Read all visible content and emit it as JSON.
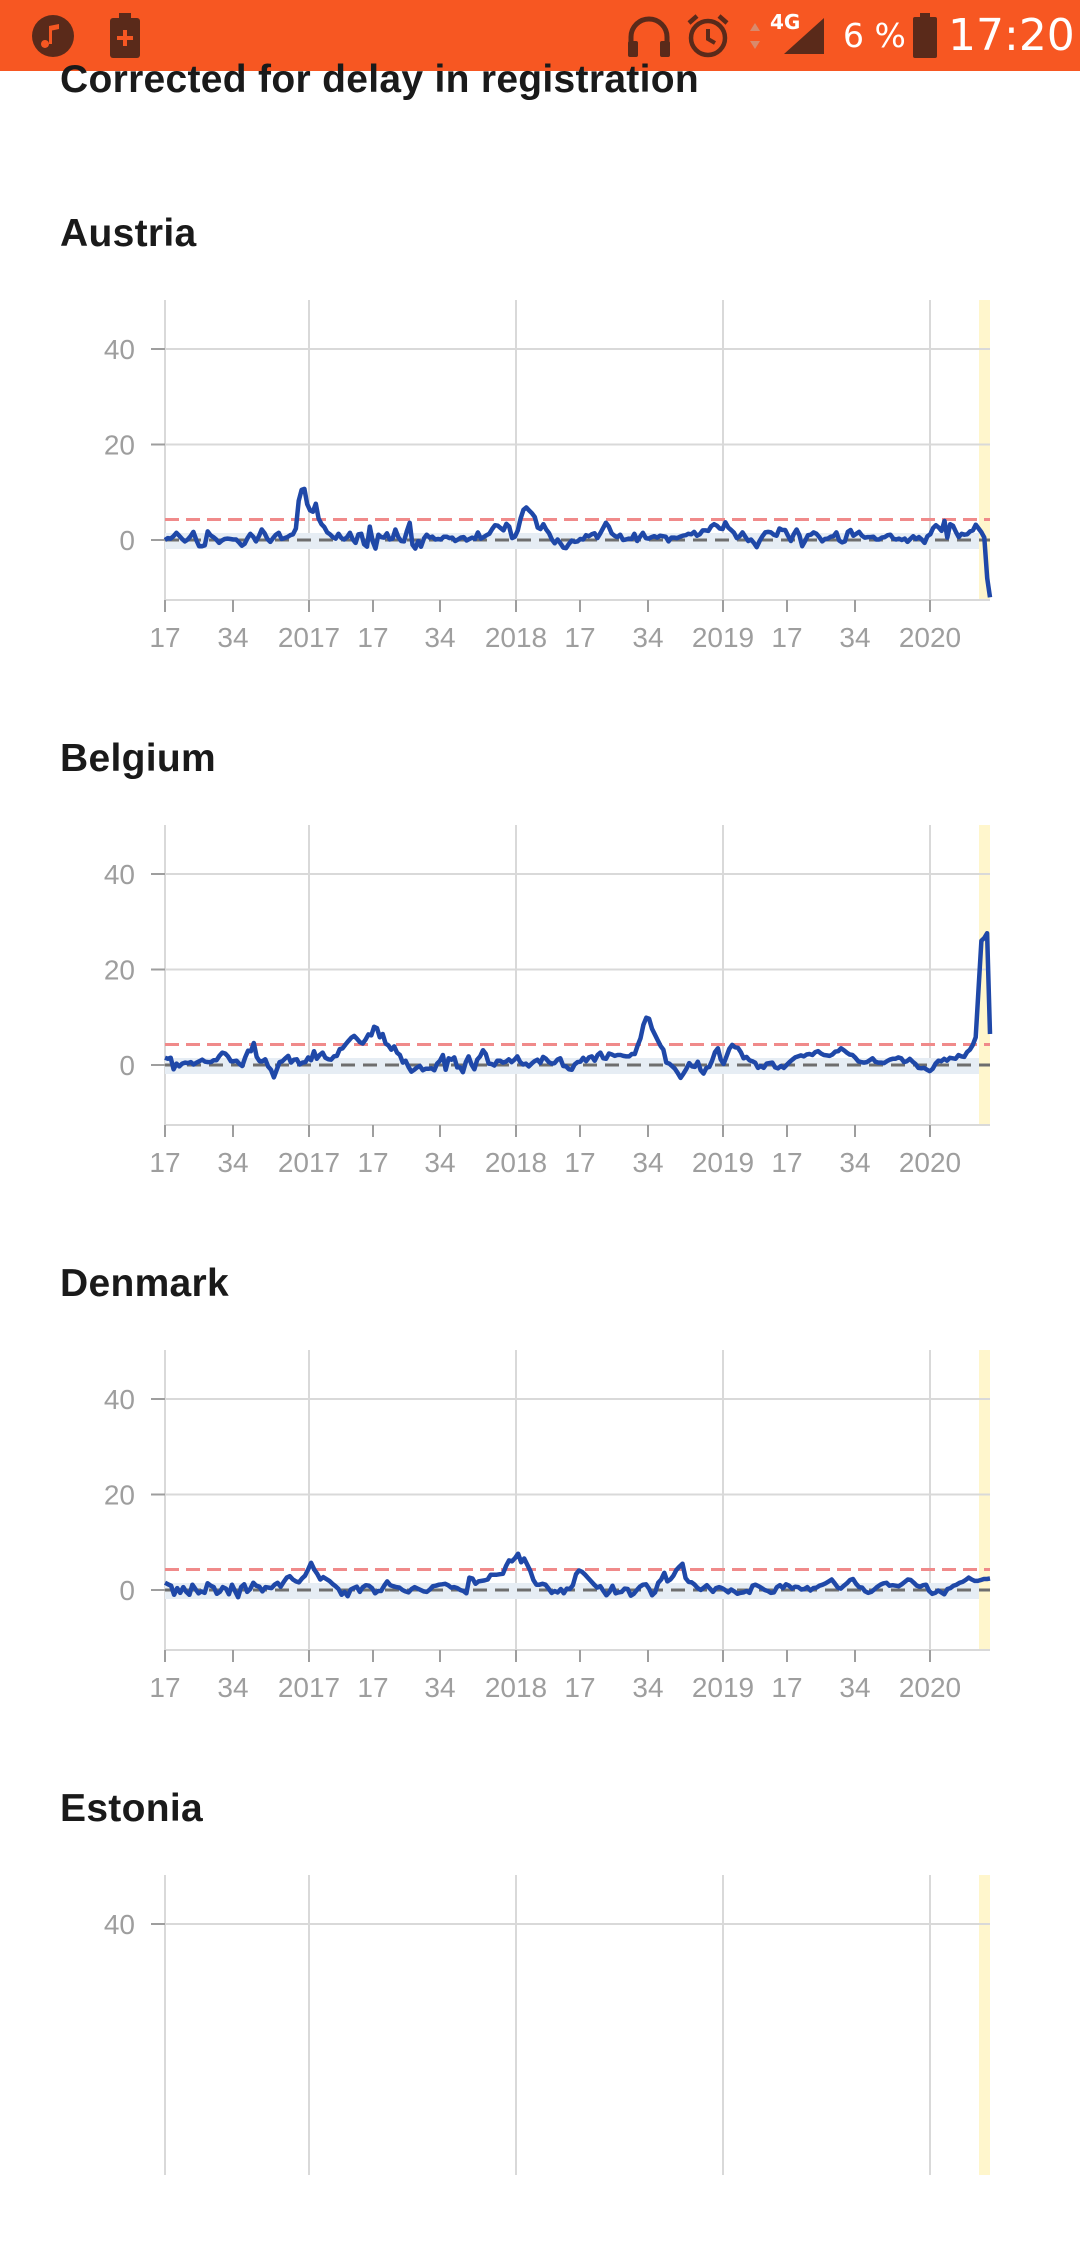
{
  "status_bar": {
    "time": "17:20",
    "battery_percent": "6 %",
    "network": "4G",
    "background_color": "#f75722",
    "left_icons": [
      "music-note-icon",
      "battery-saver-icon"
    ],
    "right_icons": [
      "headphones-icon",
      "alarm-clock-icon",
      "data-arrows-icon",
      "signal-icon",
      "battery-icon"
    ]
  },
  "page": {
    "subtitle": "Corrected for delay in registration"
  },
  "colors": {
    "series_line": "#1f48a8",
    "baseline_dash": "#6e6e6e",
    "threshold_dash": "#f08a8a",
    "baseline_band": "#e6edf4",
    "highlight_band": "#fff6cc",
    "grid": "#d9d9d9",
    "tick_text": "#9e9e9e"
  },
  "chart_data": [
    {
      "type": "line",
      "title": "Austria",
      "x_tick_labels": [
        "17",
        "34",
        "2017",
        "17",
        "34",
        "2018",
        "17",
        "34",
        "2019",
        "17",
        "34",
        "2020"
      ],
      "y_tick_labels": [
        "40",
        "20",
        "0"
      ],
      "ylim": [
        -12,
        50
      ],
      "baseline": 0,
      "threshold": 4.3,
      "highlighted_region": "last weeks of 2020",
      "series": [
        {
          "color": "#1f48a8",
          "values": [
            0,
            0.4,
            0.3,
            0.8,
            1.5,
            0.9,
            0.2,
            -0.3,
            0.1,
            0.8,
            1.7,
            0,
            -1.3,
            -1.3,
            -1.1,
            1.8,
            1,
            0.6,
            0.1,
            -0.6,
            -0.1,
            0.2,
            0.3,
            0.2,
            0.1,
            0.1,
            -0.5,
            -1.2,
            -0.8,
            0.4,
            1.3,
            0.7,
            -0.3,
            0.8,
            2.2,
            1.4,
            0.2,
            -0.4,
            0.4,
            1.1,
            1.5,
            0.2,
            0.4,
            0.6,
            1,
            1.2,
            2.4,
            8.2,
            10.5,
            10.7,
            7.5,
            6.2,
            5.9,
            7.6,
            4.5,
            3.3,
            2.7,
            1.6,
            1.2,
            0.6,
            0.3,
            1.3,
            0.4,
            0.1,
            0.6,
            1.5,
            0.1,
            -0.6,
            1.2,
            1.3,
            -0.9,
            -1.4,
            2.8,
            -0.3,
            -1.8,
            1.1,
            0.6,
            0.5,
            1.4,
            0.1,
            0.3,
            2.2,
            0.6,
            -0.2,
            -0.3,
            1.8,
            3.6,
            -1,
            -1.8,
            -0.2,
            -1.4,
            0.3,
            1.1,
            0.5,
            0.7,
            0.1,
            0.2,
            0.1,
            0.7,
            0.7,
            0.4,
            0.5,
            -0.2,
            0.1,
            0.5,
            0.6,
            -0.1,
            0.2,
            0.5,
            0.2,
            1.6,
            0.3,
            0.6,
            1,
            1.3,
            2.3,
            3.1,
            3,
            2.5,
            2,
            3.4,
            2.8,
            0.4,
            0.7,
            2,
            4.5,
            6.3,
            6.8,
            6.2,
            5.6,
            4.8,
            2.6,
            2.3,
            3.3,
            2.2,
            1.4,
            0.1,
            -0.7,
            0.1,
            -0.7,
            -1.6,
            -1.7,
            -0.8,
            -0.1,
            -0.4,
            -0.3,
            0.2,
            0.1,
            1,
            0.8,
            1.2,
            1.4,
            0.4,
            1.4,
            2.5,
            3.6,
            2.8,
            1.4,
            0.9,
            0.6,
            1.1,
            0,
            0.1,
            0.3,
            0.2,
            1.3,
            -0.2,
            0.7,
            1.5,
            0.4,
            0.3,
            0.6,
            0.8,
            0.5,
            0.9,
            0.8,
            0.7,
            -0.3,
            0.5,
            0.5,
            0.4,
            0.7,
            0.9,
            1,
            1.3,
            1.2,
            1.7,
            0.9,
            1.2,
            2,
            2,
            1.9,
            2.9,
            3.3,
            3,
            2.4,
            2.3,
            3.7,
            2.6,
            2.1,
            1.5,
            0.4,
            0.8,
            1.6,
            0.7,
            -0.2,
            0.1,
            -0.6,
            -1.5,
            -0.2,
            0.8,
            1.6,
            1.7,
            1.6,
            1.1,
            0.9,
            2.4,
            2.1,
            2.1,
            0.9,
            -0.2,
            1.2,
            2.2,
            1,
            -1.3,
            -0.2,
            1,
            1.1,
            1.6,
            1.3,
            0.6,
            -0.3,
            0.2,
            0.3,
            0.7,
            0.8,
            1.6,
            -0.1,
            -0.5,
            -0.3,
            1.7,
            2.1,
            0.9,
            1.3,
            1.7,
            0.9,
            0.5,
            0.6,
            0.6,
            0.7,
            0.1,
            0.1,
            0.5,
            0.6,
            1,
            1.1,
            0.3,
            0.1,
            0.3,
            0,
            0.3,
            -0.4,
            0.2,
            0.8,
            0.2,
            0.6,
            0.1,
            -0.6,
            0.8,
            1.2,
            2.5,
            3.1,
            2.6,
            1.9,
            4,
            0.5,
            3.3,
            3,
            1.7,
            0.6,
            1.3,
            1.1,
            1.2,
            1.8,
            2,
            3.2,
            2.4,
            1.6,
            0.5,
            -8,
            -12
          ]
        }
      ]
    },
    {
      "type": "line",
      "title": "Belgium",
      "x_tick_labels": [
        "17",
        "34",
        "2017",
        "17",
        "34",
        "2018",
        "17",
        "34",
        "2019",
        "17",
        "34",
        "2020"
      ],
      "y_tick_labels": [
        "40",
        "20",
        "0"
      ],
      "ylim": [
        -12,
        50
      ],
      "baseline": 0,
      "threshold": 4.3,
      "highlighted_region": "last weeks of 2020",
      "series": [
        {
          "color": "#1f48a8",
          "values": [
            1.5,
            1.3,
            1.5,
            -0.9,
            0.3,
            -0.3,
            0.3,
            0.5,
            0.4,
            0.6,
            0.1,
            0.5,
            0.8,
            1.1,
            0.7,
            0.6,
            0.6,
            1,
            1,
            1.9,
            2.6,
            2.4,
            1.8,
            0.8,
            0.8,
            0.9,
            0.2,
            -0.2,
            1.6,
            3,
            2.9,
            4.6,
            1.7,
            0.8,
            0.8,
            1.2,
            -0.3,
            -1,
            -2.6,
            -1,
            0.6,
            0.8,
            1.4,
            1.9,
            0.5,
            1.1,
            1.2,
            0.1,
            0.5,
            0.6,
            1.6,
            1,
            2.9,
            1.3,
            2.1,
            2.6,
            1.5,
            1.2,
            1.1,
            1.8,
            1.9,
            3.3,
            3.5,
            4.3,
            5,
            5.7,
            6.1,
            5.5,
            4.8,
            4.5,
            5.3,
            6.4,
            6.2,
            8,
            7.7,
            5.8,
            6.5,
            4.5,
            4.1,
            3.2,
            3.9,
            2.6,
            2.1,
            0.5,
            0.9,
            -0.4,
            -1.4,
            -1,
            -0.5,
            -0.2,
            -1.1,
            -0.8,
            -0.8,
            -0.7,
            -1.1,
            0.3,
            0.9,
            2.1,
            -1,
            1.4,
            1.1,
            1.6,
            -0.5,
            -0.5,
            -1.5,
            0.6,
            1.8,
            0.1,
            -0.9,
            1.1,
            1.8,
            3.1,
            2.3,
            0.3,
            0.2,
            -0.1,
            0.9,
            0.9,
            0.5,
            0.7,
            1.2,
            0.6,
            1.1,
            1.8,
            0.6,
            0.1,
            0.3,
            -0.3,
            0.3,
            0.8,
            1.1,
            0.4,
            1.7,
            1.3,
            0.6,
            0.3,
            0.4,
            1.1,
            1.4,
            -0.2,
            -0.3,
            -0.9,
            -1,
            0.1,
            0.6,
            0.7,
            1.5,
            0.8,
            1.6,
            1.8,
            0.9,
            2.1,
            2.6,
            1.4,
            1.3,
            2.4,
            2.2,
            1.9,
            2.1,
            2.1,
            1.9,
            1.8,
            1.8,
            2.3,
            2.3,
            4.1,
            5.6,
            8.4,
            9.9,
            9.7,
            7.6,
            6.4,
            5.2,
            4,
            3.2,
            0.5,
            0.3,
            -0.2,
            -0.8,
            -1.7,
            -2.7,
            -1.8,
            -0.8,
            0.4,
            -0.3,
            -0.4,
            0.7,
            -1.1,
            -1.8,
            -0.6,
            -0.4,
            0.9,
            2.7,
            3.5,
            1.2,
            0.2,
            1.8,
            3.4,
            4.2,
            3.7,
            3.6,
            2.7,
            1.4,
            1.7,
            1,
            0.8,
            0.5,
            -0.6,
            -0.2,
            -0.6,
            0.3,
            0.4,
            0.5,
            -0.5,
            -0.7,
            -0.2,
            -0.6,
            0,
            0.6,
            1.1,
            1.6,
            1.8,
            2,
            1.8,
            2.2,
            2.3,
            2.1,
            2.7,
            2.9,
            2.4,
            2.1,
            2,
            1.9,
            2.2,
            2.8,
            2.9,
            3.5,
            3.1,
            2.6,
            2.2,
            2.1,
            1.5,
            0.8,
            0.6,
            0.5,
            0.6,
            1,
            1.4,
            0.7,
            0.5,
            0.5,
            0.4,
            0.8,
            1.1,
            1.3,
            1.3,
            1.6,
            1.4,
            0.6,
            0.8,
            1.3,
            0.7,
            0.2,
            -0.6,
            -0.7,
            -0.6,
            -1,
            -1.3,
            -0.8,
            0.3,
            0.9,
            0.8,
            1.3,
            0.9,
            1.5,
            1.4,
            1.3,
            2.1,
            1.8,
            1.7,
            2.7,
            3.2,
            4.2,
            5.8,
            15.8,
            26,
            26.6,
            27.6,
            6.5
          ]
        }
      ]
    },
    {
      "type": "line",
      "title": "Denmark",
      "x_tick_labels": [
        "17",
        "34",
        "2017",
        "17",
        "34",
        "2018",
        "17",
        "34",
        "2019",
        "17",
        "34",
        "2020"
      ],
      "y_tick_labels": [
        "40",
        "20",
        "0"
      ],
      "ylim": [
        -12,
        50
      ],
      "baseline": 0,
      "threshold": 4.3,
      "highlighted_region": "last weeks of 2020",
      "series": [
        {
          "color": "#1f48a8",
          "values": [
            1.5,
            1.2,
            0.9,
            -1,
            0.4,
            -0.6,
            0.6,
            -0.4,
            -1,
            1.1,
            0.2,
            -0.7,
            -0.3,
            -0.6,
            1.4,
            0.9,
            0.6,
            -0.8,
            -0.4,
            0.6,
            0.3,
            -0.9,
            1.1,
            -0.2,
            -1.5,
            0.6,
            1.2,
            -0.4,
            0.2,
            1.5,
            0.9,
            0.7,
            -0.3,
            0.6,
            0.5,
            0.4,
            1.1,
            1.5,
            0.7,
            1.7,
            2.6,
            2.9,
            2.2,
            1.8,
            1.6,
            2.4,
            3,
            4.3,
            5.7,
            4.3,
            3.4,
            2.2,
            2.7,
            2.3,
            1.9,
            1.3,
            0.8,
            0.2,
            -1,
            -0.4,
            -1.3,
            0.1,
            0.4,
            0.7,
            -0.4,
            0.6,
            1,
            0.9,
            0.4,
            -0.7,
            -0.2,
            -0.2,
            0.9,
            1.8,
            1,
            0.8,
            0.6,
            0.5,
            0,
            -0.3,
            -0.5,
            0.2,
            0.6,
            0.3,
            0,
            -0.3,
            -0.4,
            0.1,
            0.8,
            0.9,
            1.1,
            1.2,
            1.3,
            1,
            0.5,
            0.6,
            0.4,
            0,
            -0.2,
            -0.7,
            2.6,
            2.4,
            1.3,
            1.8,
            1.9,
            2,
            2.2,
            3.2,
            3.2,
            3.2,
            3.3,
            3.4,
            5,
            6.2,
            6,
            6.7,
            7.6,
            5.8,
            6.6,
            5.3,
            4,
            2.1,
            1.1,
            1.1,
            1.3,
            1.1,
            0.3,
            -0.6,
            -0.2,
            -0.5,
            0.2,
            -0.7,
            0.3,
            0.2,
            1,
            3.3,
            4.1,
            3.8,
            3.2,
            2.5,
            1.8,
            1.1,
            0.5,
            0.8,
            -0.2,
            -1.1,
            -0.4,
            0.9,
            -0.7,
            -0.5,
            -0.4,
            0.3,
            0.2,
            -1.2,
            -0.8,
            0,
            0.7,
            1.1,
            1.2,
            0.3,
            -1.1,
            -0.5,
            1.5,
            2.2,
            3.6,
            1.8,
            2.2,
            3,
            4.2,
            4.9,
            5.5,
            2.5,
            1.7,
            1.6,
            1.1,
            0.4,
            0,
            0.5,
            1,
            0.3,
            -0.4,
            0.4,
            0.6,
            0.4,
            0,
            -0.5,
            0.1,
            -0.3,
            -0.8,
            -0.6,
            -0.5,
            -0.2,
            -0.6,
            0.9,
            1.1,
            0.8,
            0.4,
            0,
            -0.2,
            -0.6,
            -0.5,
            0.6,
            1,
            0.4,
            1.2,
            0.9,
            0.3,
            0.7,
            0.6,
            0.1,
            0.2,
            0.6,
            -0.1,
            0.4,
            0.5,
            0.9,
            1.1,
            1.4,
            1.8,
            2.2,
            1.4,
            0.5,
            0.3,
            0.9,
            1.4,
            2.1,
            2.3,
            1.3,
            0.6,
            0.5,
            -0.3,
            -0.6,
            -0.4,
            0.1,
            0.7,
            1.1,
            1.4,
            1.5,
            0.9,
            1,
            0.9,
            0.8,
            1.2,
            1.7,
            2.2,
            2.1,
            1.5,
            0.9,
            0.7,
            1,
            1.1,
            -0.2,
            -0.8,
            -0.6,
            -0.1,
            -0.5,
            -0.9,
            0.2,
            0.4,
            0.9,
            1.1,
            1.5,
            1.7,
            2.1,
            2.6,
            2.2,
            1.9,
            1.9,
            2.1,
            2.3,
            2.3,
            2.4
          ]
        }
      ]
    },
    {
      "type": "line",
      "title": "Estonia",
      "y_tick_labels": [
        "40"
      ],
      "ylim": [
        -12,
        50
      ]
    }
  ]
}
